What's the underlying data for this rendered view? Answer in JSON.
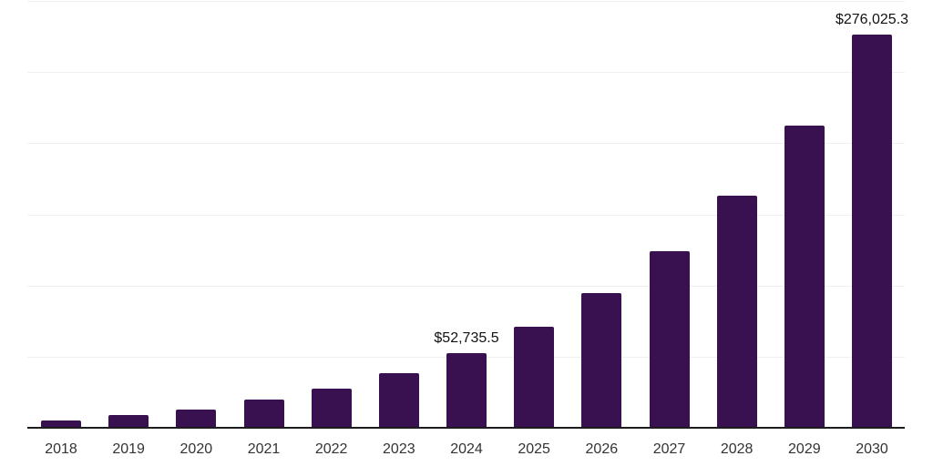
{
  "chart_data": {
    "type": "bar",
    "title": "",
    "xlabel": "",
    "ylabel": "",
    "categories": [
      "2018",
      "2019",
      "2020",
      "2021",
      "2022",
      "2023",
      "2024",
      "2025",
      "2026",
      "2027",
      "2028",
      "2029",
      "2030"
    ],
    "values": [
      5100,
      9000,
      12800,
      19800,
      27500,
      38400,
      52735.5,
      71000,
      94600,
      124100,
      163100,
      212600,
      276025.3
    ],
    "data_labels": {
      "2024": "$52,735.5",
      "2030": "$276,025.3"
    },
    "ylim": [
      0,
      300000
    ],
    "gridline_step": 50000,
    "y_tick_labels_visible": false,
    "grid": "horizontal",
    "legend_position": "none",
    "bar_color": "#3A1150"
  },
  "colors": {
    "background": "#ffffff",
    "bar": "#3A1150",
    "gridline": "#f0f0f1",
    "axis_line": "#1c1c1c",
    "x_tick_label": "#333333",
    "data_label": "#111111"
  }
}
